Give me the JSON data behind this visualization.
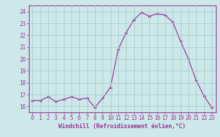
{
  "x": [
    0,
    1,
    2,
    3,
    4,
    5,
    6,
    7,
    8,
    9,
    10,
    11,
    12,
    13,
    14,
    15,
    16,
    17,
    18,
    19,
    20,
    21,
    22,
    23
  ],
  "y": [
    16.5,
    16.5,
    16.8,
    16.4,
    16.6,
    16.8,
    16.6,
    16.7,
    15.9,
    16.7,
    17.6,
    20.8,
    22.2,
    23.3,
    23.9,
    23.6,
    23.8,
    23.7,
    23.1,
    21.5,
    20.0,
    18.2,
    16.9,
    15.9
  ],
  "line_color": "#993399",
  "marker_color": "#993399",
  "bg_color": "#cce8e8",
  "grid_color": "#aacccc",
  "xlabel": "Windchill (Refroidissement éolien,°C)",
  "ylim": [
    15.5,
    24.5
  ],
  "xlim": [
    -0.5,
    23.5
  ],
  "yticks": [
    16,
    17,
    18,
    19,
    20,
    21,
    22,
    23,
    24
  ],
  "xticks": [
    0,
    1,
    2,
    3,
    4,
    5,
    6,
    7,
    8,
    9,
    10,
    11,
    12,
    13,
    14,
    15,
    16,
    17,
    18,
    19,
    20,
    21,
    22,
    23
  ],
  "tick_fontsize": 5.5,
  "label_fontsize": 6.0,
  "linewidth": 0.9,
  "markersize": 2.0
}
